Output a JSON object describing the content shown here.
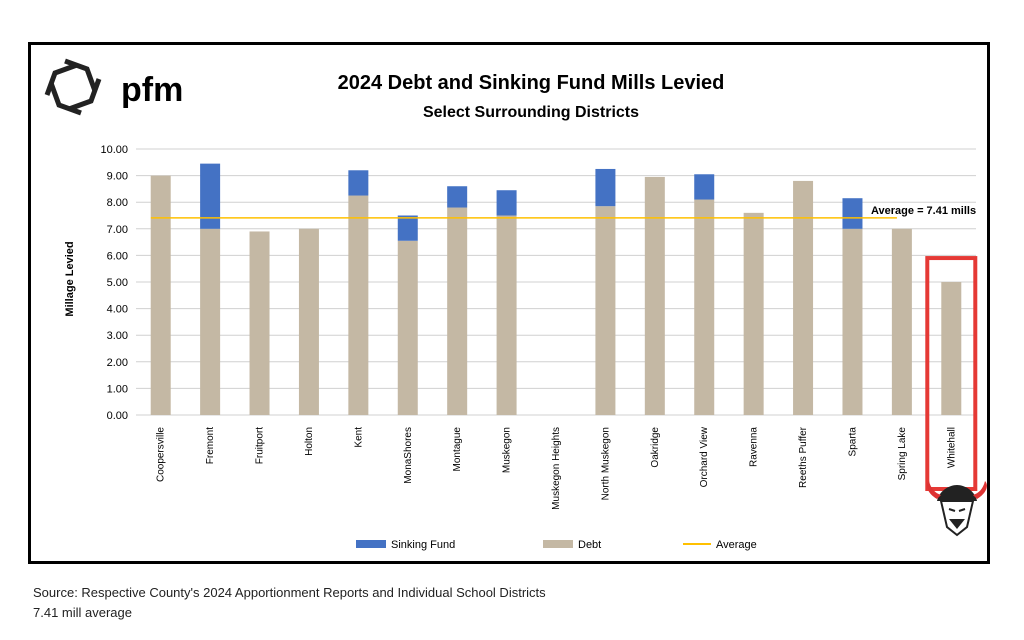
{
  "brand": {
    "name": "pfm"
  },
  "footer": {
    "source": "Source: Respective County's 2024 Apportionment Reports and Individual School Districts",
    "note": "7.41 mill average"
  },
  "chart_data": {
    "type": "bar",
    "stacked": true,
    "title": "2024 Debt and Sinking Fund Mills Levied",
    "subtitle": "Select Surrounding  Districts",
    "xlabel": "",
    "ylabel": "Millage  Levied",
    "ylim": [
      0,
      10
    ],
    "yticks": [
      "0.00",
      "1.00",
      "2.00",
      "3.00",
      "4.00",
      "5.00",
      "6.00",
      "7.00",
      "8.00",
      "9.00",
      "10.00"
    ],
    "grid": true,
    "legend_position": "bottom",
    "categories": [
      "Coopersville",
      "Fremont",
      "Fruitport",
      "Holton",
      "Kent",
      "MonaShores",
      "Montague",
      "Muskegon",
      "Muskegon Heights",
      "North Muskegon",
      "Oakridge",
      "Orchard View",
      "Ravenna",
      "Reeths Puffer",
      "Sparta",
      "Spring Lake",
      "Whitehall"
    ],
    "series": [
      {
        "name": "Debt",
        "color": "#c4b8a4",
        "values": [
          9.0,
          7.0,
          6.9,
          7.0,
          8.25,
          6.55,
          7.8,
          7.5,
          0,
          7.85,
          8.95,
          8.1,
          7.6,
          8.8,
          7.0,
          7.0,
          5.0
        ]
      },
      {
        "name": "Sinking Fund",
        "color": "#4472c4",
        "values": [
          0,
          2.45,
          0,
          0,
          0.95,
          0.95,
          0.8,
          0.95,
          0,
          1.4,
          0,
          0.95,
          0,
          0,
          1.15,
          0,
          0
        ]
      }
    ],
    "average": {
      "name": "Average",
      "value": 7.41,
      "color": "#ffc000",
      "label": "Average = 7.41 mills",
      "label_color": "#ff0000"
    },
    "highlight": {
      "category": "Whitehall",
      "color": "#e53935"
    },
    "legend": [
      "Sinking Fund",
      "Debt",
      "Average"
    ]
  }
}
